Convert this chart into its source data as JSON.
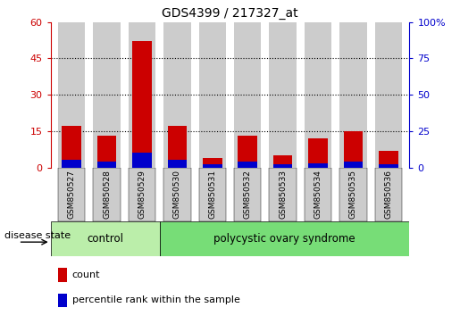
{
  "title": "GDS4399 / 217327_at",
  "samples": [
    "GSM850527",
    "GSM850528",
    "GSM850529",
    "GSM850530",
    "GSM850531",
    "GSM850532",
    "GSM850533",
    "GSM850534",
    "GSM850535",
    "GSM850536"
  ],
  "count_values": [
    17,
    13,
    52,
    17,
    4,
    13,
    5,
    12,
    15,
    7
  ],
  "percentile_values": [
    5,
    4,
    10,
    5,
    2,
    4,
    2,
    3,
    4,
    2
  ],
  "left_ylim": [
    0,
    60
  ],
  "right_ylim": [
    0,
    100
  ],
  "left_yticks": [
    0,
    15,
    30,
    45,
    60
  ],
  "right_yticks": [
    0,
    25,
    50,
    75,
    100
  ],
  "right_ytick_labels": [
    "0",
    "25",
    "50",
    "75",
    "100%"
  ],
  "count_color": "#cc0000",
  "percentile_color": "#0000cc",
  "bar_bg_color": "#cccccc",
  "control_label": "control",
  "pcos_label": "polycystic ovary syndrome",
  "control_bg": "#bbeeaa",
  "pcos_bg": "#77dd77",
  "disease_state_label": "disease state",
  "legend_count_label": "count",
  "legend_percentile_label": "percentile rank within the sample",
  "bar_width": 0.55,
  "n_control": 3,
  "n_pcos": 7
}
